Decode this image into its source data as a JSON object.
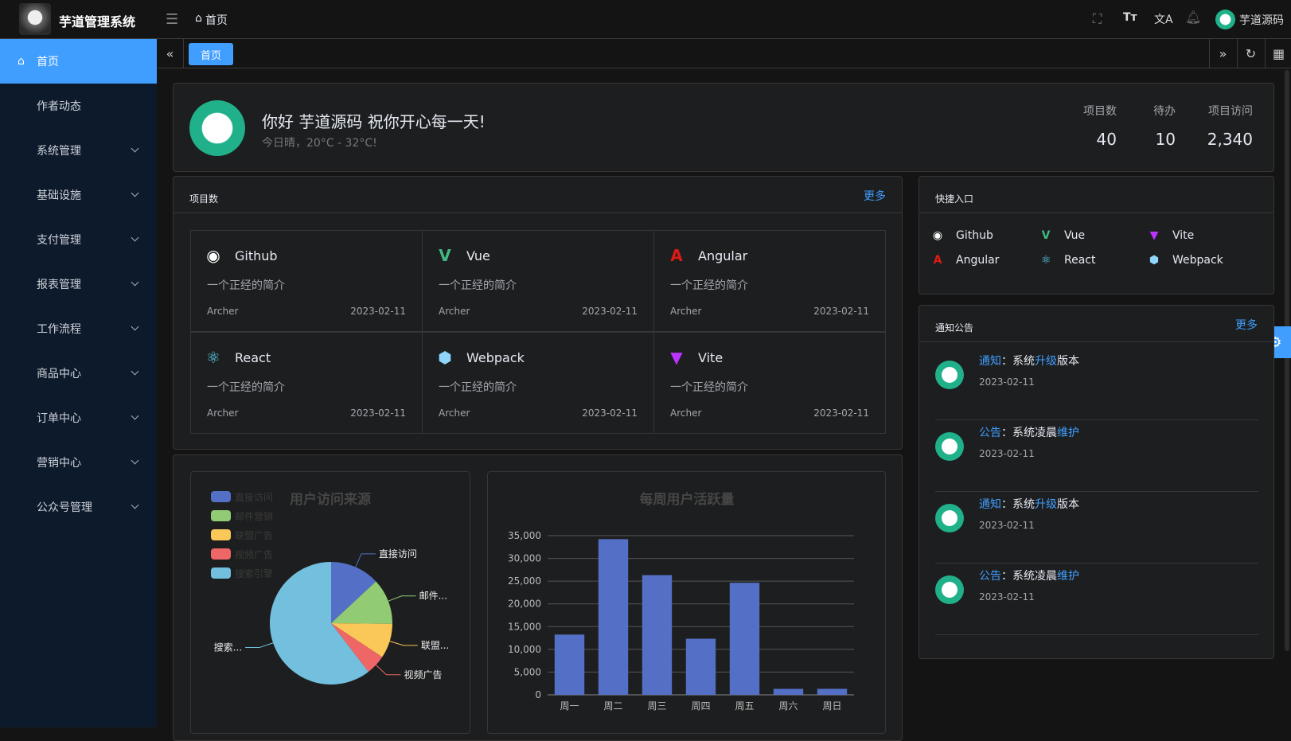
{
  "header": {
    "app_title": "芋道管理系统",
    "breadcrumb": "首页",
    "user_name": "芋道源码"
  },
  "sidebar": {
    "items": [
      {
        "label": "首页",
        "active": true
      },
      {
        "label": "作者动态"
      },
      {
        "label": "系统管理"
      },
      {
        "label": "基础设施"
      },
      {
        "label": "支付管理"
      },
      {
        "label": "报表管理"
      },
      {
        "label": "工作流程"
      },
      {
        "label": "商品中心"
      },
      {
        "label": "订单中心"
      },
      {
        "label": "营销中心"
      },
      {
        "label": "公众号管理"
      }
    ]
  },
  "tabs": [
    {
      "label": "首页"
    }
  ],
  "welcome": {
    "greeting": "你好 芋道源码 祝你开心每一天!",
    "weather": "今日晴，20°C - 32°C!",
    "stats": [
      {
        "label": "项目数",
        "value": "40"
      },
      {
        "label": "待办",
        "value": "10"
      },
      {
        "label": "项目访问",
        "value": "2,340"
      }
    ]
  },
  "projects": {
    "title": "项目数",
    "more": "更多",
    "items": [
      {
        "name": "Github",
        "icon": "github-icon",
        "desc": "一个正经的简介",
        "author": "Archer",
        "date": "2023-02-11"
      },
      {
        "name": "Vue",
        "icon": "vue-icon",
        "desc": "一个正经的简介",
        "author": "Archer",
        "date": "2023-02-11"
      },
      {
        "name": "Angular",
        "icon": "angular-icon",
        "desc": "一个正经的简介",
        "author": "Archer",
        "date": "2023-02-11"
      },
      {
        "name": "React",
        "icon": "react-icon",
        "desc": "一个正经的简介",
        "author": "Archer",
        "date": "2023-02-11"
      },
      {
        "name": "Webpack",
        "icon": "webpack-icon",
        "desc": "一个正经的简介",
        "author": "Archer",
        "date": "2023-02-11"
      },
      {
        "name": "Vite",
        "icon": "vite-icon",
        "desc": "一个正经的简介",
        "author": "Archer",
        "date": "2023-02-11"
      }
    ]
  },
  "shortcuts": {
    "title": "快捷入口",
    "items": [
      {
        "name": "Github"
      },
      {
        "name": "Vue"
      },
      {
        "name": "Vite"
      },
      {
        "name": "Angular"
      },
      {
        "name": "React"
      },
      {
        "name": "Webpack"
      }
    ]
  },
  "notices": {
    "title": "通知公告",
    "more": "更多",
    "items": [
      {
        "type": "通知",
        "pre": "：系统",
        "hl": "升级",
        "post": "版本",
        "date": "2023-02-11"
      },
      {
        "type": "公告",
        "pre": "：系统凌晨",
        "hl": "维护",
        "post": "",
        "date": "2023-02-11"
      },
      {
        "type": "通知",
        "pre": "：系统",
        "hl": "升级",
        "post": "版本",
        "date": "2023-02-11"
      },
      {
        "type": "公告",
        "pre": "：系统凌晨",
        "hl": "维护",
        "post": "",
        "date": "2023-02-11"
      }
    ]
  },
  "chart_data": [
    {
      "type": "pie",
      "title": "用户访问来源",
      "legend_position": "top-left",
      "categories": [
        "直接访问",
        "邮件营销",
        "联盟广告",
        "视频广告",
        "搜索引擎"
      ],
      "values": [
        335,
        310,
        234,
        135,
        1548
      ],
      "colors": [
        "#5470c6",
        "#91cc75",
        "#fac858",
        "#ee6666",
        "#73c0de"
      ],
      "slice_labels": [
        "直接访问",
        "邮件...",
        "联盟...",
        "视频广告",
        "搜索..."
      ]
    },
    {
      "type": "bar",
      "title": "每周用户活跃量",
      "categories": [
        "周一",
        "周二",
        "周三",
        "周四",
        "周五",
        "周六",
        "周日"
      ],
      "values": [
        13253,
        34235,
        26321,
        12340,
        24643,
        1322,
        1324
      ],
      "ylim": [
        0,
        35000
      ],
      "yticks": [
        "0",
        "5,000",
        "10,000",
        "15,000",
        "20,000",
        "25,000",
        "30,000",
        "35,000"
      ],
      "grid": true,
      "color": "#5470c6"
    }
  ]
}
